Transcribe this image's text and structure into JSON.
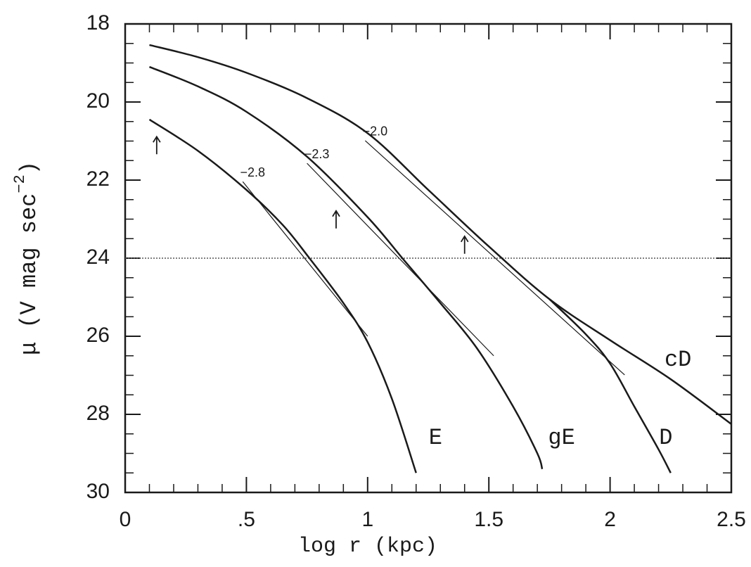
{
  "chart_data": {
    "type": "line",
    "x_label": "log r (kpc)",
    "y_label": {
      "text": "μ (V mag sec",
      "exponent": "−2",
      "end": ")"
    },
    "xlim": [
      0,
      2.5
    ],
    "ylim": [
      30,
      18
    ],
    "xticks": [
      0,
      {
        "value": 0.5,
        "label": ".5"
      },
      1,
      1.5,
      2,
      2.5
    ],
    "yticks": [
      18,
      20,
      22,
      24,
      26,
      28,
      30
    ],
    "reference_line": 24,
    "color": "#1a1a1a",
    "series": [
      {
        "name": "E",
        "x": [
          0.1,
          0.3,
          0.5,
          0.65,
          0.76,
          0.9,
          1.0,
          1.1,
          1.2
        ],
        "values": [
          20.45,
          21.25,
          22.25,
          23.15,
          24.0,
          25.15,
          26.15,
          27.6,
          29.5
        ]
      },
      {
        "name": "gE",
        "x": [
          0.1,
          0.3,
          0.5,
          0.75,
          1.0,
          1.15,
          1.3,
          1.45,
          1.6,
          1.7,
          1.72
        ],
        "values": [
          19.1,
          19.6,
          20.25,
          21.4,
          22.95,
          24.05,
          25.15,
          26.3,
          27.8,
          29.0,
          29.4
        ]
      },
      {
        "name": "D",
        "x": [
          1.75,
          1.9,
          2.0,
          2.1,
          2.2,
          2.25
        ],
        "values": [
          25.05,
          25.95,
          26.7,
          27.8,
          28.9,
          29.5
        ]
      },
      {
        "name": "cD",
        "x": [
          0.1,
          0.3,
          0.5,
          0.75,
          1.0,
          1.25,
          1.5,
          1.75,
          2.0,
          2.25,
          2.5
        ],
        "values": [
          18.54,
          18.85,
          19.25,
          19.9,
          20.8,
          22.25,
          23.7,
          25.05,
          26.1,
          27.1,
          28.25
        ]
      }
    ],
    "tangents": [
      {
        "label": "−2.8",
        "x": [
          0.485,
          1.0
        ],
        "values": [
          22.04,
          26.0
        ]
      },
      {
        "label": "−2.3",
        "x": [
          0.75,
          1.52
        ],
        "values": [
          21.57,
          26.5
        ]
      },
      {
        "label": "−2.0",
        "x": [
          0.99,
          2.06
        ],
        "values": [
          20.99,
          26.99
        ]
      }
    ],
    "arrows": {
      "x": [
        0.13,
        0.87,
        1.4
      ],
      "values": [
        21.05,
        22.95,
        23.6
      ]
    }
  }
}
